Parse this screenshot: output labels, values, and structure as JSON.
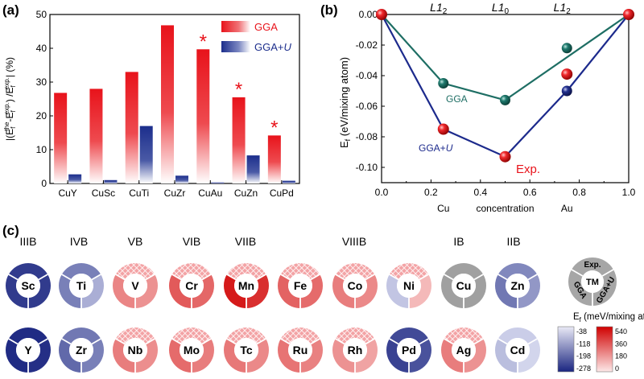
{
  "panel_labels": {
    "a": "(a)",
    "b": "(b)",
    "c": "(c)"
  },
  "colors": {
    "gga": "#e8131b",
    "gga_u": "#1c2e8c",
    "convex_gga": "#1e6e64",
    "convex_ggau": "#1c2a8c",
    "exp": "#e8131b",
    "gray_ring": "#a0a0a0"
  },
  "chart_data": [
    {
      "id": "a",
      "type": "bar",
      "ylabel_parts": [
        "|(E",
        "f",
        "the",
        "-E",
        "f",
        "exp.",
        ") /E",
        "f",
        "exp.",
        "| (%)"
      ],
      "categories": [
        "CuY",
        "CuSc",
        "CuTi",
        "CuZr",
        "CuAu",
        "CuZn",
        "CuPd"
      ],
      "series": [
        {
          "name": "GGA",
          "values": [
            26.8,
            28.0,
            33.0,
            46.8,
            39.7,
            25.5,
            14.2
          ]
        },
        {
          "name": "GGA+U",
          "values": [
            2.7,
            1.0,
            17.0,
            2.3,
            0.3,
            8.3,
            0.8
          ]
        }
      ],
      "ylim": [
        0,
        50
      ],
      "yticks": [
        "0",
        "10",
        "20",
        "30",
        "40",
        "50"
      ],
      "annotations": [
        {
          "category": "CuAu",
          "text": "*"
        },
        {
          "category": "CuZn",
          "text": "*"
        },
        {
          "category": "CuPd",
          "text": "*"
        }
      ],
      "legend": [
        "GGA",
        "GGA+U"
      ]
    },
    {
      "id": "b",
      "type": "line",
      "ylabel": "E",
      "ylabel_sub": "f",
      "ylabel_rest": " (eV/mixing atom)",
      "xlim": [
        0.0,
        1.0
      ],
      "ylim": [
        -0.11,
        0.0
      ],
      "xticks": [
        "0.0",
        "0.2",
        "0.4",
        "0.6",
        "0.8",
        "1.0"
      ],
      "yticks": [
        "0.00",
        "-0.02",
        "-0.04",
        "-0.06",
        "-0.08",
        "-0.10"
      ],
      "xlabel_left": "Cu",
      "xlabel_mid": "concentration",
      "xlabel_right": "Au",
      "top_phase_labels": [
        {
          "x": 0.25,
          "main": "L1",
          "sub": "2"
        },
        {
          "x": 0.5,
          "main": "L1",
          "sub": "0"
        },
        {
          "x": 0.75,
          "main": "L1",
          "sub": "2"
        }
      ],
      "series": [
        {
          "name": "GGA",
          "hull_x": [
            0,
            0.25,
            0.5,
            1.0
          ],
          "hull_y": [
            0,
            -0.045,
            -0.056,
            0
          ],
          "points": [
            [
              0.25,
              -0.045
            ],
            [
              0.5,
              -0.056
            ],
            [
              0.75,
              -0.022
            ]
          ]
        },
        {
          "name": "GGA+U",
          "hull_x": [
            0,
            0.25,
            0.5,
            0.75,
            1.0
          ],
          "hull_y": [
            0,
            -0.075,
            -0.093,
            -0.05,
            0
          ],
          "points": [
            [
              0.25,
              -0.075
            ],
            [
              0.5,
              -0.093
            ],
            [
              0.75,
              -0.05
            ]
          ]
        },
        {
          "name": "Exp.",
          "points": [
            [
              0,
              0
            ],
            [
              1.0,
              0
            ],
            [
              0.25,
              -0.075
            ],
            [
              0.5,
              -0.093
            ],
            [
              0.75,
              -0.039
            ]
          ]
        }
      ],
      "labels": {
        "gga": "GGA",
        "ggau_main": "GGA+",
        "ggau_u": "U",
        "exp": "Exp."
      }
    },
    {
      "id": "c",
      "type": "heatmap",
      "groups": [
        "IIIB",
        "IVB",
        "VB",
        "VIB",
        "VIIB",
        "VIIIB",
        "IB",
        "IIB"
      ],
      "rows": [
        [
          {
            "el": "Sc",
            "gga": -250,
            "exp": -250,
            "ggau": -250
          },
          {
            "el": "Ti",
            "gga": -160,
            "exp": -160,
            "ggau": -100
          },
          {
            "el": "V",
            "gga": 230,
            "exp": 230,
            "ggau": 200,
            "hatch": true
          },
          {
            "el": "Cr",
            "gga": 330,
            "exp": 300,
            "ggau": 300,
            "hatch": true
          },
          {
            "el": "Mn",
            "gga": 480,
            "exp": 460,
            "ggau": 430,
            "hatch": true
          },
          {
            "el": "Fe",
            "gga": 310,
            "exp": 290,
            "ggau": 290,
            "hatch": true
          },
          {
            "el": "Co",
            "gga": 250,
            "exp": 230,
            "ggau": 220,
            "hatch": true
          },
          {
            "el": "Ni",
            "gga": -70,
            "exp": 150,
            "ggau": 110,
            "hatch": true
          },
          {
            "el": "Cu",
            "gray": true
          },
          {
            "el": "Zn",
            "gga": -170,
            "exp": -150,
            "ggau": -130
          }
        ],
        [
          {
            "el": "Y",
            "gga": -270,
            "exp": -270,
            "ggau": -265
          },
          {
            "el": "Zr",
            "gga": -190,
            "exp": -170,
            "ggau": -160
          },
          {
            "el": "Nb",
            "gga": 250,
            "exp": 230,
            "ggau": 210,
            "hatch": true
          },
          {
            "el": "Mo",
            "gga": 290,
            "exp": 270,
            "ggau": 250,
            "hatch": true
          },
          {
            "el": "Tc",
            "gga": 260,
            "exp": 240,
            "ggau": 220,
            "hatch": true
          },
          {
            "el": "Ru",
            "gga": 270,
            "exp": 250,
            "ggau": 240,
            "hatch": true
          },
          {
            "el": "Rh",
            "gga": 200,
            "exp": 180,
            "ggau": 160,
            "hatch": true
          },
          {
            "el": "Pd",
            "gga": -240,
            "exp": -230,
            "ggau": -220
          },
          {
            "el": "Ag",
            "gga": 250,
            "exp": 230,
            "ggau": 200,
            "hatch": true
          },
          {
            "el": "Cd",
            "gga": -80,
            "exp": -60,
            "ggau": -50
          }
        ]
      ],
      "key": {
        "exp": "Exp.",
        "center": "TM",
        "left": "GGA",
        "right": "GGA+U"
      },
      "colorbar": {
        "title_main": "E",
        "title_sub": "f",
        "title_rest": " (meV/mixing atom)",
        "neg_ticks": [
          "-38",
          "-118",
          "-198",
          "-278"
        ],
        "neg_range": [
          -38,
          -278
        ],
        "pos_ticks": [
          "540",
          "360",
          "180",
          "0"
        ],
        "pos_range": [
          0,
          540
        ]
      }
    }
  ]
}
